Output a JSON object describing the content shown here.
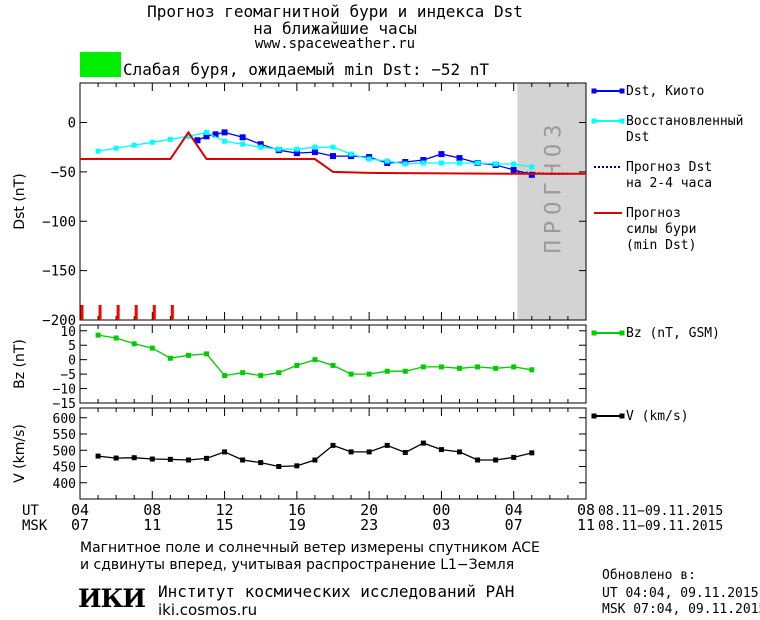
{
  "header": {
    "title_line1": "Прогноз геомагнитной бури и индекса Dst",
    "title_line2": "на ближайшие часы",
    "site": "www.spaceweather.ru",
    "storm_status": "Слабая буря, ожидаемый min Dst: −52 nT",
    "storm_badge_color": "#00ee00"
  },
  "chart_data": [
    {
      "type": "line",
      "ylabel": "Dst (nT)",
      "ylim": [
        -200,
        40
      ],
      "yticks": [
        0,
        -50,
        -100,
        -150,
        -200
      ],
      "ytick_labels": [
        "0",
        "−50",
        "−100",
        "−150",
        "−200"
      ],
      "xlim": [
        4,
        32
      ],
      "forecast_region": {
        "x0": 28.2,
        "x1": 32,
        "label": "ПРОГНОЗ",
        "color": "#d3d3d3"
      },
      "series": [
        {
          "name": "Dst, Киото",
          "legend": "Dst, Киото",
          "color": "#0000ff",
          "marker": "square",
          "x": [
            10.5,
            11,
            11.5,
            12,
            13,
            14,
            15,
            16,
            17,
            18,
            19,
            20,
            21,
            22,
            23,
            24,
            25,
            26,
            27,
            28,
            29
          ],
          "y": [
            -18,
            -14,
            -12,
            -10,
            -15,
            -22,
            -28,
            -31,
            -30,
            -34,
            -34,
            -35,
            -41,
            -40,
            -38,
            -32,
            -36,
            -41,
            -43,
            -48,
            -53
          ]
        },
        {
          "name": "Восстановленный Dst",
          "legend": [
            "Восстановленный",
            "Dst"
          ],
          "color": "#00ffff",
          "marker": "square",
          "x": [
            5,
            6,
            7,
            8,
            9,
            10,
            11,
            12,
            13,
            14,
            15,
            16,
            17,
            18,
            19,
            20,
            21,
            22,
            23,
            24,
            25,
            26,
            27,
            28,
            29
          ],
          "y": [
            -29,
            -26,
            -23,
            -20,
            -17,
            -14,
            -10,
            -19,
            -22,
            -25,
            -27,
            -27,
            -25,
            -25,
            -32,
            -37,
            -39,
            -42,
            -41,
            -41,
            -41,
            -41,
            -42,
            -42,
            -45
          ]
        },
        {
          "name": "Прогноз Dst на 2-4 часа",
          "legend": [
            "Прогноз Dst",
            "на 2-4 часа"
          ],
          "color": "#00008b",
          "marker": "none",
          "dash": "dotted",
          "x": [
            28,
            29,
            30,
            31
          ],
          "y": [
            -50,
            -51,
            -52,
            -52
          ]
        },
        {
          "name": "Прогноз силы бури (min Dst)",
          "legend": [
            "Прогноз",
            "силы бури",
            "(min Dst)"
          ],
          "color": "#dd0000",
          "marker": "none",
          "step": true,
          "x": [
            4,
            9,
            10,
            11,
            17,
            18,
            20,
            28,
            32
          ],
          "y": [
            -37,
            -37,
            -10,
            -37,
            -37,
            -50,
            -51,
            -52,
            -52
          ]
        }
      ],
      "event_ticks": {
        "color": "#ff0000",
        "x": [
          4,
          5,
          6,
          7,
          8,
          9
        ]
      }
    },
    {
      "type": "line",
      "ylabel": "Bz (nT)",
      "ylim": [
        -15,
        12
      ],
      "yticks": [
        10,
        5,
        0,
        -5,
        -10,
        -15
      ],
      "ytick_labels": [
        "10",
        "5",
        "0",
        "−5",
        "−10",
        "−15"
      ],
      "xlim": [
        4,
        32
      ],
      "series": [
        {
          "name": "Bz (nT, GSM)",
          "legend": "Bz (nT, GSM)",
          "color": "#00cc00",
          "marker": "square",
          "x": [
            5,
            6,
            7,
            8,
            9,
            10,
            11,
            12,
            13,
            14,
            15,
            16,
            17,
            18,
            19,
            20,
            21,
            22,
            23,
            24,
            25,
            26,
            27,
            28,
            29
          ],
          "y": [
            8.5,
            7.5,
            5.5,
            4,
            0.5,
            1.5,
            2,
            -5.5,
            -4.5,
            -5.5,
            -4.5,
            -2,
            0,
            -2,
            -5,
            -5,
            -4,
            -4,
            -2.5,
            -2.5,
            -3,
            -2.5,
            -3,
            -2.5,
            -3.5
          ]
        }
      ]
    },
    {
      "type": "line",
      "ylabel": "V (km/s)",
      "ylim": [
        350,
        630
      ],
      "yticks": [
        600,
        550,
        500,
        450,
        400
      ],
      "ytick_labels": [
        "600",
        "550",
        "500",
        "450",
        "400"
      ],
      "xlim": [
        4,
        32
      ],
      "series": [
        {
          "name": "V (km/s)",
          "legend": "V (km/s)",
          "color": "#000000",
          "marker": "square",
          "x": [
            5,
            6,
            7,
            8,
            9,
            10,
            11,
            12,
            13,
            14,
            15,
            16,
            17,
            18,
            19,
            20,
            21,
            22,
            23,
            24,
            25,
            26,
            27,
            28,
            29
          ],
          "y": [
            482,
            476,
            477,
            473,
            472,
            470,
            475,
            495,
            470,
            462,
            450,
            452,
            470,
            515,
            495,
            495,
            515,
            493,
            522,
            502,
            495,
            470,
            470,
            478,
            492
          ]
        }
      ]
    }
  ],
  "x_axis": {
    "ut_label": "UT",
    "msk_label": "MSK",
    "ut_ticks": [
      {
        "x": 4,
        "label": "04"
      },
      {
        "x": 8,
        "label": "08"
      },
      {
        "x": 12,
        "label": "12"
      },
      {
        "x": 16,
        "label": "16"
      },
      {
        "x": 20,
        "label": "20"
      },
      {
        "x": 24,
        "label": "00"
      },
      {
        "x": 28,
        "label": "04"
      },
      {
        "x": 32,
        "label": "08"
      }
    ],
    "msk_ticks": [
      {
        "x": 4,
        "label": "07"
      },
      {
        "x": 8,
        "label": "11"
      },
      {
        "x": 12,
        "label": "15"
      },
      {
        "x": 16,
        "label": "19"
      },
      {
        "x": 20,
        "label": "23"
      },
      {
        "x": 24,
        "label": "03"
      },
      {
        "x": 28,
        "label": "07"
      },
      {
        "x": 32,
        "label": "11"
      }
    ],
    "ut_date_range": "08.11−09.11.2015",
    "msk_date_range": "08.11−09.11.2015"
  },
  "footer": {
    "note_line1": "Магнитное поле и солнечный ветер измерены спутником ACE",
    "note_line2": "и сдвинуты вперед, учитывая распространение L1−Земля",
    "institute_logo": "ИКИ",
    "institute_name": "Институт космических исследований РАН",
    "institute_site": "iki.cosmos.ru",
    "updated_label": "Обновлено в:",
    "updated_ut": "UT   04:04, 09.11.2015",
    "updated_msk": "MSK 07:04, 09.11.2015"
  }
}
